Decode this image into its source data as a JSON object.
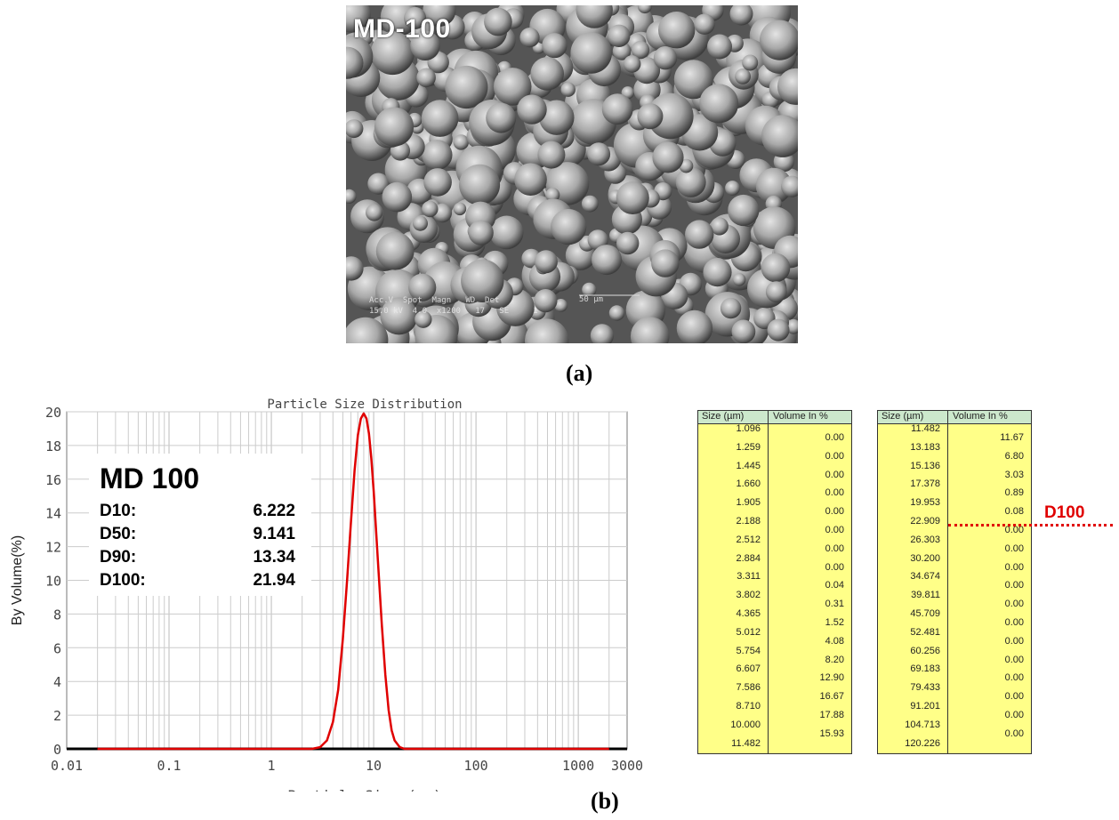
{
  "sem_image": {
    "label": "MD-100",
    "info_text": "Acc.V  Spot  Magn   WD  Det\n15.0 kV  4.0  x1200   17   SE     1",
    "scale_text": "50 μm"
  },
  "captions": {
    "a": "(a)",
    "b": "(b)"
  },
  "info_box": {
    "title": "MD 100",
    "rows": [
      {
        "key": "D10:",
        "value": "6.222"
      },
      {
        "key": "D50:",
        "value": "9.141"
      },
      {
        "key": "D90:",
        "value": "13.34"
      },
      {
        "key": "D100:",
        "value": "21.94"
      }
    ]
  },
  "chart_data": {
    "type": "line",
    "title": "Particle Size Distribution",
    "xlabel": "Particle Size (um)",
    "ylabel": "By Volume(%)",
    "x_scale": "log",
    "xlim": [
      0.01,
      3000
    ],
    "ylim": [
      0,
      20
    ],
    "x_ticks": [
      "0.01",
      "0.1",
      "1",
      "10",
      "100",
      "1000",
      "3000"
    ],
    "y_ticks": [
      "0",
      "2",
      "4",
      "6",
      "8",
      "10",
      "12",
      "14",
      "16",
      "18",
      "20"
    ],
    "grid": true,
    "series": [
      {
        "color": "#e00000",
        "x": [
          0.02,
          2.5,
          3.0,
          3.5,
          4.0,
          4.5,
          5.0,
          5.5,
          6.0,
          6.5,
          7.0,
          7.5,
          8.0,
          8.5,
          9.0,
          9.5,
          10.0,
          11.0,
          12.0,
          13.0,
          14.0,
          15.0,
          16.0,
          18.0,
          20.0,
          25.0,
          2000.0
        ],
        "y": [
          0.0,
          0.0,
          0.1,
          0.5,
          1.6,
          3.5,
          6.5,
          10.0,
          13.5,
          16.5,
          18.6,
          19.6,
          19.9,
          19.6,
          18.7,
          17.2,
          15.3,
          11.2,
          7.4,
          4.4,
          2.3,
          1.1,
          0.5,
          0.1,
          0.0,
          0.0,
          0.0
        ]
      }
    ]
  },
  "tables": {
    "header_size": "Size (µm)",
    "header_volume": "Volume In %",
    "left": {
      "sizes": [
        "1.096",
        "1.259",
        "1.445",
        "1.660",
        "1.905",
        "2.188",
        "2.512",
        "2.884",
        "3.311",
        "3.802",
        "4.365",
        "5.012",
        "5.754",
        "6.607",
        "7.586",
        "8.710",
        "10.000",
        "11.482"
      ],
      "volumes": [
        "0.00",
        "0.00",
        "0.00",
        "0.00",
        "0.00",
        "0.00",
        "0.00",
        "0.00",
        "0.04",
        "0.31",
        "1.52",
        "4.08",
        "8.20",
        "12.90",
        "16.67",
        "17.88",
        "15.93"
      ]
    },
    "right": {
      "sizes": [
        "11.482",
        "13.183",
        "15.136",
        "17.378",
        "19.953",
        "22.909",
        "26.303",
        "30.200",
        "34.674",
        "39.811",
        "45.709",
        "52.481",
        "60.256",
        "69.183",
        "79.433",
        "91.201",
        "104.713",
        "120.226"
      ],
      "volumes": [
        "11.67",
        "6.80",
        "3.03",
        "0.89",
        "0.08",
        "0.00",
        "0.00",
        "0.00",
        "0.00",
        "0.00",
        "0.00",
        "0.00",
        "0.00",
        "0.00",
        "0.00",
        "0.00",
        "0.00"
      ]
    },
    "marker": "D100"
  }
}
